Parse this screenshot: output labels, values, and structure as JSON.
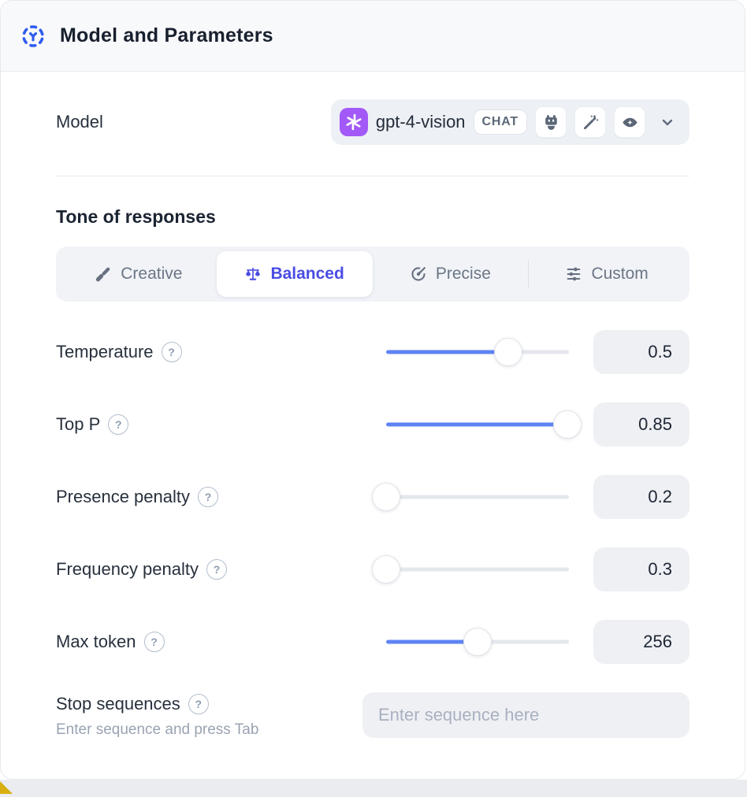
{
  "header": {
    "title": "Model and Parameters"
  },
  "model": {
    "label": "Model",
    "name": "gpt-4-vision",
    "type_badge": "CHAT",
    "capability_icons": [
      "robot-icon",
      "magic-wand-icon",
      "vision-eye-icon"
    ]
  },
  "tone": {
    "heading": "Tone of responses",
    "tabs": [
      {
        "label": "Creative",
        "icon": "paintbrush-icon",
        "active": false
      },
      {
        "label": "Balanced",
        "icon": "balance-scale-icon",
        "active": true
      },
      {
        "label": "Precise",
        "icon": "target-icon",
        "active": false
      },
      {
        "label": "Custom",
        "icon": "sliders-icon",
        "active": false
      }
    ]
  },
  "parameters": [
    {
      "label": "Temperature",
      "value": "0.5",
      "fill": 67
    },
    {
      "label": "Top P",
      "value": "0.85",
      "fill": 99
    },
    {
      "label": "Presence penalty",
      "value": "0.2",
      "fill": 0
    },
    {
      "label": "Frequency penalty",
      "value": "0.3",
      "fill": 0
    },
    {
      "label": "Max token",
      "value": "256",
      "fill": 50
    }
  ],
  "stop_sequences": {
    "label": "Stop sequences",
    "hint": "Enter sequence and press Tab",
    "placeholder": "Enter sequence here"
  },
  "ui": {
    "help_glyph": "?"
  },
  "colors": {
    "accent_blue": "#5f83f3",
    "active_indigo": "#4a4ce4",
    "openai_purple": "#a259f7",
    "header_icon_blue": "#2f5cf0",
    "gold_corner": "#d8ae10"
  }
}
